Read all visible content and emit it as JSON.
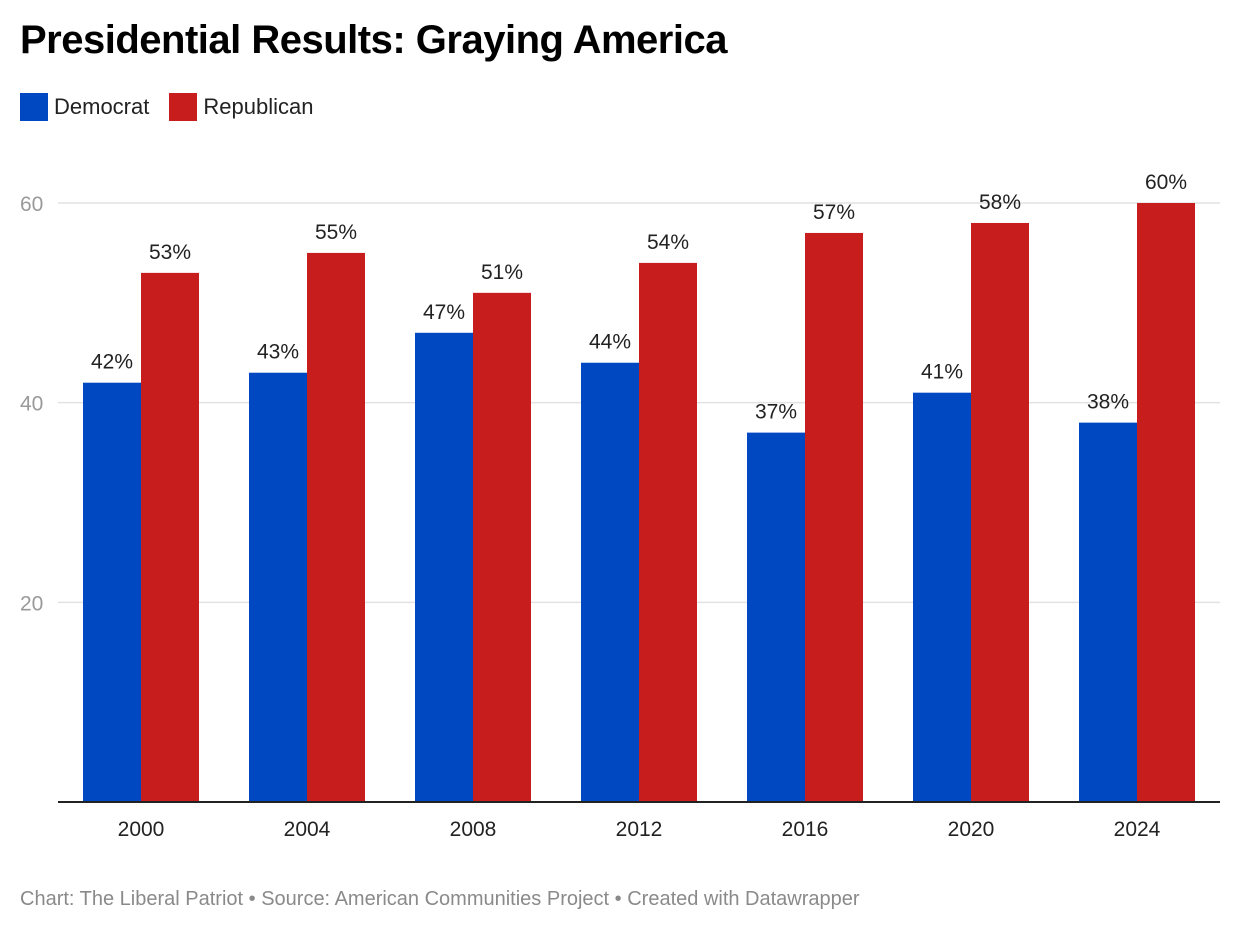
{
  "header": {
    "title": "Presidential Results: Graying America"
  },
  "legend": [
    {
      "label": "Democrat",
      "color": "#0047c2"
    },
    {
      "label": "Republican",
      "color": "#c81d1d"
    }
  ],
  "footer": {
    "credit": "Chart: The Liberal Patriot • Source: American Communities Project • Created with Datawrapper"
  },
  "chart_data": {
    "type": "bar",
    "title": "Presidential Results: Graying America",
    "xlabel": "",
    "ylabel": "",
    "categories": [
      "2000",
      "2004",
      "2008",
      "2012",
      "2016",
      "2020",
      "2024"
    ],
    "series": [
      {
        "name": "Democrat",
        "color": "#0047c2",
        "values": [
          42,
          43,
          47,
          44,
          37,
          41,
          38
        ],
        "labels": [
          "42%",
          "43%",
          "47%",
          "44%",
          "37%",
          "41%",
          "38%"
        ]
      },
      {
        "name": "Republican",
        "color": "#c81d1d",
        "values": [
          53,
          55,
          51,
          54,
          57,
          58,
          60
        ],
        "labels": [
          "53%",
          "55%",
          "51%",
          "54%",
          "57%",
          "58%",
          "60%"
        ]
      }
    ],
    "ylim": [
      0,
      60
    ],
    "yticks": [
      20,
      40,
      60
    ],
    "ytick_labels": [
      "20",
      "40",
      "60"
    ],
    "grid": true,
    "legend_position": "top-left"
  }
}
